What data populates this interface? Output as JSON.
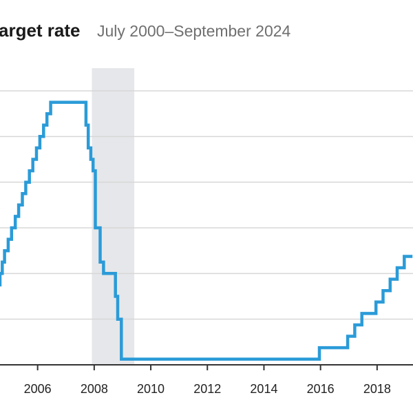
{
  "chart_data": {
    "type": "line",
    "title": "Target rate",
    "title_visible": "arget rate",
    "subtitle": "July 2000–September 2024",
    "xlabel": "",
    "ylabel": "",
    "x_tick_labels": [
      "2006",
      "2008",
      "2010",
      "2012",
      "2014",
      "2016",
      "2018"
    ],
    "x_ticks": [
      2006,
      2008,
      2010,
      2012,
      2014,
      2016,
      2018
    ],
    "xlim": [
      2004.5,
      2019.25
    ],
    "ylim": [
      0,
      6
    ],
    "y_gridlines": [
      0,
      1,
      2,
      3,
      4,
      5,
      6
    ],
    "grid": "horizontal",
    "shaded_periods": [
      {
        "start": 2007.917,
        "end": 2009.417
      }
    ],
    "series": [
      {
        "color": "#2b9bd8",
        "step": true,
        "x": [
          2004.5,
          2004.58,
          2004.67,
          2004.75,
          2004.83,
          2004.96,
          2005.08,
          2005.21,
          2005.33,
          2005.46,
          2005.58,
          2005.71,
          2005.83,
          2005.96,
          2006.08,
          2006.21,
          2006.33,
          2006.46,
          2007.71,
          2007.79,
          2007.88,
          2007.96,
          2008.04,
          2008.08,
          2008.21,
          2008.33,
          2008.75,
          2008.83,
          2008.96,
          2015.96,
          2016.96,
          2017.21,
          2017.46,
          2017.96,
          2018.21,
          2018.46,
          2018.71,
          2018.96,
          2019.25
        ],
        "values": [
          1.5,
          1.75,
          2.0,
          2.25,
          2.5,
          2.75,
          3.0,
          3.25,
          3.5,
          3.75,
          4.0,
          4.25,
          4.5,
          4.75,
          5.0,
          5.25,
          5.5,
          5.75,
          5.25,
          4.75,
          4.5,
          4.25,
          3.0,
          3.0,
          2.25,
          2.0,
          1.5,
          1.0,
          0.125,
          0.375,
          0.625,
          0.875,
          1.125,
          1.375,
          1.625,
          1.875,
          2.125,
          2.375,
          2.375
        ]
      }
    ]
  }
}
